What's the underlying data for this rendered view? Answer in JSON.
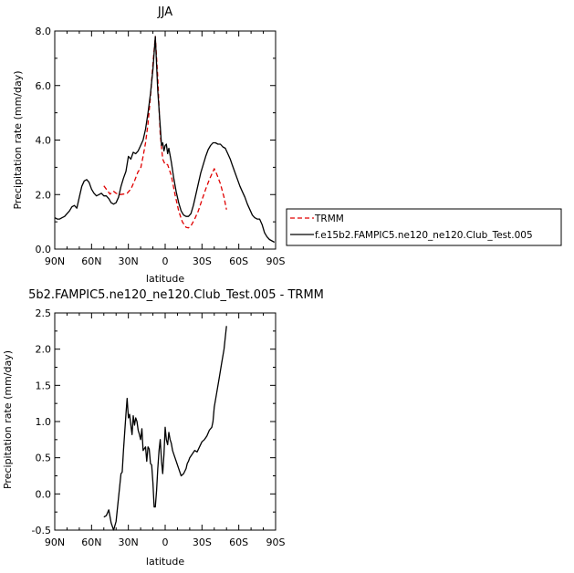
{
  "chart_data": [
    {
      "type": "line",
      "title": "JJA",
      "xlabel": "latitude",
      "ylabel": "Precipitation rate (mm/day)",
      "xlim": [
        90,
        -90
      ],
      "ylim": [
        0,
        8
      ],
      "xticks": [
        90,
        60,
        30,
        0,
        -30,
        -60,
        -90
      ],
      "xtick_labels": [
        "90N",
        "60N",
        "30N",
        "0",
        "30S",
        "60S",
        "90S"
      ],
      "yticks": [
        0,
        2,
        4,
        6,
        8
      ],
      "ytick_labels": [
        "0.0",
        "2.0",
        "4.0",
        "6.0",
        "8.0"
      ],
      "grid": false,
      "legend_position": "right",
      "series": [
        {
          "name": "TRMM",
          "color": "#e00000",
          "dash": "dashed",
          "x": [
            50,
            48,
            45,
            42,
            40,
            37,
            34,
            31,
            28,
            25,
            22,
            20,
            18,
            16,
            14,
            12,
            10,
            8,
            6,
            4,
            2,
            0,
            -2,
            -5,
            -8,
            -11,
            -14,
            -17,
            -19,
            -21,
            -24,
            -27,
            -30,
            -33,
            -36,
            -38,
            -40,
            -42,
            -45,
            -48,
            -50
          ],
          "y": [
            2.32,
            2.2,
            2.02,
            2.12,
            2.05,
            2.0,
            2.02,
            2.05,
            2.2,
            2.5,
            2.85,
            2.95,
            3.4,
            3.9,
            4.6,
            5.6,
            6.8,
            7.8,
            6.3,
            4.2,
            3.3,
            3.1,
            3.1,
            2.7,
            2.0,
            1.4,
            1.0,
            0.8,
            0.78,
            0.85,
            1.1,
            1.4,
            1.8,
            2.2,
            2.55,
            2.75,
            2.95,
            2.75,
            2.4,
            1.9,
            1.45
          ]
        },
        {
          "name": "f.e15b2.FAMPIC5.ne120_ne120.Club_Test.005",
          "color": "#000000",
          "dash": "solid",
          "x": [
            90,
            88,
            86,
            84,
            82,
            80,
            78,
            76,
            74,
            72,
            70,
            68,
            66,
            64,
            62,
            60,
            58,
            56,
            54,
            52,
            50,
            48,
            46,
            44,
            42,
            40,
            38,
            36,
            34,
            32,
            30,
            28,
            26,
            24,
            22,
            20,
            18,
            16,
            14,
            12,
            10,
            9,
            8,
            6,
            4,
            3,
            2,
            1,
            0,
            -1,
            -2,
            -3,
            -5,
            -7,
            -9,
            -11,
            -13,
            -15,
            -17,
            -19,
            -21,
            -23,
            -25,
            -27,
            -29,
            -31,
            -33,
            -35,
            -37,
            -39,
            -41,
            -43,
            -45,
            -47,
            -49,
            -51,
            -53,
            -55,
            -57,
            -59,
            -61,
            -63,
            -65,
            -67,
            -69,
            -71,
            -73,
            -75,
            -77,
            -79,
            -81,
            -83,
            -85,
            -87,
            -89
          ],
          "y": [
            1.15,
            1.1,
            1.1,
            1.15,
            1.2,
            1.3,
            1.4,
            1.55,
            1.6,
            1.5,
            1.9,
            2.3,
            2.5,
            2.55,
            2.45,
            2.2,
            2.05,
            1.95,
            2.0,
            2.05,
            1.95,
            1.95,
            1.85,
            1.7,
            1.65,
            1.7,
            1.9,
            2.3,
            2.6,
            2.85,
            3.4,
            3.3,
            3.55,
            3.5,
            3.6,
            3.8,
            4.0,
            4.4,
            5.0,
            5.7,
            6.6,
            7.2,
            7.8,
            5.8,
            4.5,
            3.8,
            3.9,
            3.6,
            3.8,
            3.85,
            3.5,
            3.7,
            3.2,
            2.6,
            2.1,
            1.7,
            1.4,
            1.25,
            1.2,
            1.2,
            1.3,
            1.6,
            2.0,
            2.4,
            2.8,
            3.1,
            3.4,
            3.65,
            3.8,
            3.9,
            3.9,
            3.85,
            3.85,
            3.75,
            3.7,
            3.5,
            3.3,
            3.05,
            2.8,
            2.55,
            2.3,
            2.1,
            1.9,
            1.65,
            1.45,
            1.25,
            1.15,
            1.1,
            1.1,
            0.9,
            0.6,
            0.45,
            0.35,
            0.3,
            0.25
          ]
        }
      ]
    },
    {
      "type": "line",
      "title": "5b2.FAMPIC5.ne120_ne120.Club_Test.005 - TRMM",
      "xlabel": "latitude",
      "ylabel": "Precipitation rate (mm/day)",
      "xlim": [
        90,
        -90
      ],
      "ylim": [
        -0.5,
        2.5
      ],
      "xticks": [
        90,
        60,
        30,
        0,
        -30,
        -60,
        -90
      ],
      "xtick_labels": [
        "90N",
        "60N",
        "30N",
        "0",
        "30S",
        "60S",
        "90S"
      ],
      "yticks": [
        -0.5,
        0,
        0.5,
        1,
        1.5,
        2,
        2.5
      ],
      "ytick_labels": [
        "-0.5",
        "0.0",
        "0.5",
        "1.0",
        "1.5",
        "2.0",
        "2.5"
      ],
      "grid": false,
      "series": [
        {
          "color": "#000000",
          "dash": "solid",
          "x": [
            50,
            48,
            46,
            44,
            42,
            40,
            38,
            36,
            35,
            34,
            32,
            31,
            30,
            29,
            28,
            27,
            26,
            25,
            24,
            23,
            22,
            21,
            20,
            19,
            18,
            16,
            15,
            14,
            13,
            12,
            11,
            10,
            9,
            8,
            7,
            6,
            5,
            4,
            3,
            2,
            1,
            0,
            -1,
            -2,
            -3,
            -4,
            -5,
            -6,
            -7,
            -9,
            -11,
            -13,
            -15,
            -17,
            -18,
            -19,
            -20,
            -22,
            -24,
            -26,
            -28,
            -30,
            -32,
            -34,
            -36,
            -38,
            -39,
            -40,
            -42,
            -44,
            -46,
            -48,
            -50
          ],
          "y": [
            -0.32,
            -0.3,
            -0.22,
            -0.4,
            -0.5,
            -0.38,
            -0.05,
            0.28,
            0.3,
            0.6,
            1.1,
            1.32,
            1.05,
            1.1,
            0.95,
            0.82,
            1.08,
            0.95,
            1.05,
            1.0,
            0.88,
            0.82,
            0.75,
            0.9,
            0.6,
            0.65,
            0.45,
            0.65,
            0.62,
            0.42,
            0.4,
            0.15,
            -0.18,
            -0.18,
            0.05,
            0.35,
            0.6,
            0.75,
            0.45,
            0.28,
            0.55,
            0.92,
            0.75,
            0.68,
            0.85,
            0.75,
            0.7,
            0.6,
            0.55,
            0.45,
            0.35,
            0.25,
            0.28,
            0.35,
            0.42,
            0.45,
            0.5,
            0.55,
            0.6,
            0.58,
            0.65,
            0.72,
            0.75,
            0.8,
            0.88,
            0.92,
            1.0,
            1.2,
            1.4,
            1.6,
            1.8,
            2.0,
            2.32
          ]
        }
      ]
    }
  ]
}
